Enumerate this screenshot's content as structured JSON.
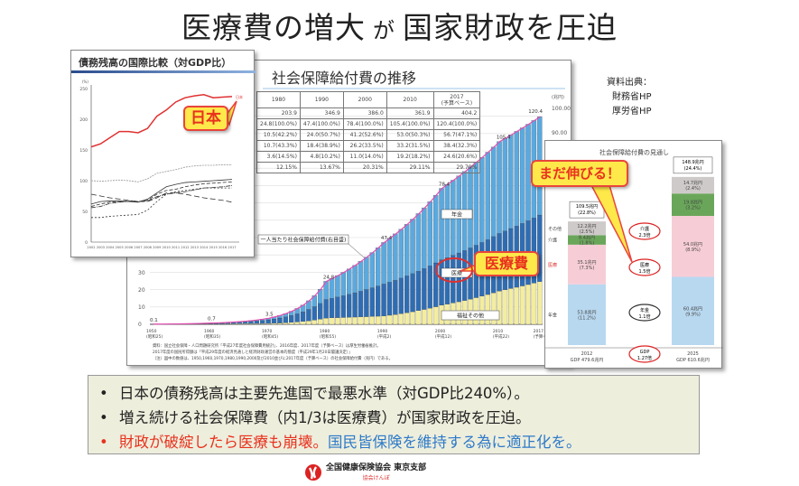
{
  "title": {
    "part1": "医療費の増大",
    "part2": "が",
    "part3": "国家財政を圧迫"
  },
  "source": {
    "label": "資料出典：",
    "items": [
      "財務省HP",
      "厚労省HP"
    ]
  },
  "callouts": {
    "japan": "日本",
    "medical": "医療費",
    "growth": "まだ伸びる！"
  },
  "colors": {
    "pension": "#5aa9df",
    "medical": "#2f6db3",
    "welfare": "#f3eda0",
    "japan_line": "#e03030",
    "callout_bg": "#ffe84a",
    "callout_border": "#e8453c",
    "accent_red": "#e8321e",
    "accent_blue": "#2d7ac8"
  },
  "bullets": [
    {
      "text": "日本の債務残高は主要先進国で最悪水準（対GDP比240%）。"
    },
    {
      "text": "増え続ける社会保障費（内1/3は医療費）が国家財政を圧迫。"
    },
    {
      "text_red": "財政が破綻したら医療も崩壊。",
      "text_blue": "国民皆保険を維持する為に適正化を。"
    }
  ],
  "logo": {
    "name": "全国健康保険協会 東京支部",
    "sub": "協会けんぽ"
  },
  "main_chart": {
    "title": "社会保障給付費の推移",
    "unit": "(兆円)",
    "table": {
      "headers": [
        "1980",
        "1990",
        "2000",
        "2010",
        "2017\n(予算ベース)"
      ],
      "rows": [
        [
          "203.9",
          "346.9",
          "386.0",
          "361.9",
          "404.2"
        ],
        [
          "24.8(100.0%)",
          "47.4(100.0%)",
          "78.4(100.0%)",
          "105.4(100.0%)",
          "120.4(100.0%)"
        ],
        [
          "10.5(42.2%)",
          "24.0(50.7%)",
          "41.2(52.6%)",
          "53.0(50.3%)",
          "56.7(47.1%)"
        ],
        [
          "10.7(43.3%)",
          "18.4(38.9%)",
          "26.2(33.5%)",
          "33.2(31.5%)",
          "38.4(32.3%)"
        ],
        [
          "3.6(14.5%)",
          "4.8(10.2%)",
          "11.0(14.0%)",
          "19.2(18.2%)",
          "24.6(20.6%)"
        ],
        [
          "12.15%",
          "13.67%",
          "20.31%",
          "29.11%",
          "29.79%"
        ]
      ]
    },
    "series_labels": {
      "pension": "年金",
      "medical": "医療",
      "welfare": "福祉その他",
      "per_capita": "一人当たり社会保障給付費(右目盛)"
    },
    "left_ticks": [
      "0",
      "10",
      "20",
      "30"
    ],
    "right_ticks": [
      "90.00",
      "100.00"
    ],
    "x_ticks": [
      "1950\n(昭和25)",
      "1960\n(昭和35)",
      "1970\n(昭和45)",
      "1980\n(昭和55)",
      "1990\n(平成2)",
      "2000\n(平成12)",
      "2010\n(平成22)",
      "2017\n(予算ベース)"
    ],
    "notes": [
      "資料：国立社会保障・人口問題研究所「平成27年度社会保障費用統計」、2016年度、2017年度（予算ベース）は厚生労働省推計。",
      "2017年度の国民所得額は「平成29年度の経済見通しと経済財政運営の基本的態度（平成29年1月20日閣議決定）」",
      "（注）図中の数値は、1950,1960,1970,1980,1990,2000及び2010並びに2017年度（予算ベース）の社会保障給付費（兆円）である。"
    ]
  },
  "left_chart": {
    "title": "債務残高の国際比較（対GDP比）",
    "unit": "(%)",
    "y_ticks": [
      "0",
      "50",
      "100",
      "150",
      "200",
      "250"
    ],
    "x_ticks": [
      "2002",
      "2003",
      "2004",
      "2005",
      "2006",
      "2007",
      "2008",
      "2009",
      "2010",
      "2011",
      "2012",
      "2013",
      "2014",
      "2015",
      "2016",
      "2017"
    ],
    "japan_label": "日本"
  },
  "right_chart": {
    "title": "社会保障給付費の見通し",
    "row_labels": [
      "その他",
      "介護",
      "医療",
      "年金"
    ],
    "years": [
      {
        "label": "2012",
        "gdp": "GDP 479.6兆円",
        "total": "109.5兆円",
        "total_pct": "(22.8%)",
        "segments": [
          [
            "53.8兆円",
            "(11.2%)"
          ],
          [
            "35.1兆円",
            "(7.3%)"
          ],
          [
            "8.4兆円",
            "(1.8%)"
          ],
          [
            "12.2兆円",
            "(2.5%)"
          ]
        ]
      },
      {
        "label": "2025",
        "gdp": "GDP 610.6兆円",
        "total": "148.9兆円",
        "total_pct": "(24.4%)",
        "segments": [
          [
            "60.4兆円",
            "(9.9%)"
          ],
          [
            "54.0兆円",
            "(8.9%)"
          ],
          [
            "19.8兆円",
            "(3.2%)"
          ],
          [
            "14.7兆円",
            "(2.4%)"
          ]
        ]
      }
    ],
    "ratios": [
      [
        "介護",
        "2.3倍"
      ],
      [
        "医療",
        "1.5倍"
      ],
      [
        "年金",
        "1.1倍"
      ],
      [
        "GDP",
        "1.27倍"
      ]
    ]
  },
  "chart_data": [
    {
      "type": "bar",
      "title": "社会保障給付費の推移",
      "x": [
        1950,
        1960,
        1970,
        1980,
        1990,
        2000,
        2010,
        2017
      ],
      "series": [
        {
          "name": "年金",
          "values": [
            0.0,
            0.1,
            0.9,
            10.5,
            24.0,
            41.2,
            53.0,
            56.7
          ]
        },
        {
          "name": "医療",
          "values": [
            0.1,
            0.4,
            2.1,
            10.7,
            18.4,
            26.2,
            33.2,
            38.4
          ]
        },
        {
          "name": "福祉その他",
          "values": [
            0.0,
            0.2,
            0.5,
            3.6,
            4.8,
            11.0,
            19.2,
            24.6
          ]
        }
      ],
      "totals": [
        0.1,
        0.7,
        3.5,
        24.8,
        47.4,
        78.4,
        105.4,
        120.4
      ],
      "stacked": true
    },
    {
      "type": "line",
      "title": "債務残高の国際比較（対GDP比）",
      "ylim": [
        0,
        250
      ],
      "x": [
        2002,
        2003,
        2004,
        2005,
        2006,
        2007,
        2008,
        2009,
        2010,
        2011,
        2012,
        2013,
        2014,
        2015,
        2016,
        2017
      ],
      "series": [
        {
          "name": "日本",
          "values": [
            155,
            160,
            170,
            180,
            180,
            178,
            185,
            205,
            215,
            228,
            235,
            238,
            240,
            235,
            236,
            237
          ]
        }
      ]
    },
    {
      "type": "bar",
      "title": "社会保障給付費の見通し",
      "categories": [
        "2012",
        "2025"
      ],
      "stacked": true,
      "series": [
        {
          "name": "年金",
          "values": [
            53.8,
            60.4
          ]
        },
        {
          "name": "医療",
          "values": [
            35.1,
            54.0
          ]
        },
        {
          "name": "介護",
          "values": [
            8.4,
            19.8
          ]
        },
        {
          "name": "その他",
          "values": [
            12.2,
            14.7
          ]
        }
      ]
    }
  ]
}
